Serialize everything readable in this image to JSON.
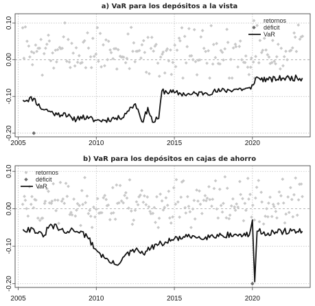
{
  "chart_data": [
    {
      "type": "scatter",
      "title": "a) VaR para los depósitos a la vista",
      "xlabel": "",
      "ylabel": "",
      "xlim": [
        2004.8,
        2023.7
      ],
      "ylim": [
        -0.21,
        0.125
      ],
      "x_ticks": [
        "2005",
        "2010",
        "2015",
        "2020"
      ],
      "y_ticks": [
        "0.10",
        "0.00",
        "-0.10",
        "-0.20"
      ],
      "y_tick_values": [
        0.1,
        0.0,
        -0.1,
        -0.2
      ],
      "x_tick_values": [
        2005,
        2010,
        2015,
        2020
      ],
      "grid": true,
      "legend_position": "top-right",
      "legend": [
        "retornos",
        "déficit",
        "VaR"
      ],
      "series": [
        {
          "name": "retornos",
          "kind": "points",
          "color": "#c8c8c8",
          "seed": 7,
          "x_start": 2005.3,
          "x_end": 2023.2,
          "n": 200,
          "base": 0.02,
          "spread": 0.05,
          "min": -0.05,
          "max": 0.12
        },
        {
          "name": "déficit",
          "kind": "points",
          "color": "#6e6e6e",
          "points": [
            [
              2006.0,
              -0.2
            ]
          ]
        },
        {
          "name": "VaR",
          "kind": "line",
          "color": "#111111",
          "seed": 11,
          "noise": 0.008,
          "x": [
            2005.3,
            2006.0,
            2006.4,
            2007.0,
            2007.5,
            2008.0,
            2008.5,
            2009.0,
            2009.5,
            2010.0,
            2010.5,
            2011.0,
            2011.5,
            2012.0,
            2012.5,
            2013.0,
            2013.3,
            2013.6,
            2014.0,
            2014.2,
            2015.0,
            2016.0,
            2017.0,
            2018.0,
            2019.0,
            2019.9,
            2020.2,
            2021.0,
            2022.0,
            2023.2
          ],
          "y": [
            -0.11,
            -0.105,
            -0.13,
            -0.14,
            -0.15,
            -0.145,
            -0.165,
            -0.155,
            -0.16,
            -0.165,
            -0.165,
            -0.16,
            -0.16,
            -0.14,
            -0.12,
            -0.17,
            -0.13,
            -0.17,
            -0.16,
            -0.085,
            -0.09,
            -0.095,
            -0.09,
            -0.085,
            -0.08,
            -0.08,
            -0.05,
            -0.055,
            -0.05,
            -0.05
          ]
        }
      ]
    },
    {
      "type": "scatter",
      "title": "b) VaR para los depósitos en cajas de ahorro",
      "xlabel": "",
      "ylabel": "",
      "xlim": [
        2004.8,
        2023.7
      ],
      "ylim": [
        -0.21,
        0.115
      ],
      "x_ticks": [
        "2005",
        "2010",
        "2015",
        "2020"
      ],
      "y_ticks": [
        "0.10",
        "0.00",
        "-0.10",
        "-0.20"
      ],
      "y_tick_values": [
        0.1,
        0.0,
        -0.1,
        -0.2
      ],
      "x_tick_values": [
        2005,
        2010,
        2015,
        2020
      ],
      "grid": true,
      "legend_position": "top-left",
      "legend": [
        "retornos",
        "déficit",
        "VaR"
      ],
      "series": [
        {
          "name": "retornos",
          "kind": "points",
          "color": "#c8c8c8",
          "seed": 23,
          "x_start": 2005.3,
          "x_end": 2023.2,
          "n": 210,
          "base": 0.015,
          "spread": 0.045,
          "min": -0.05,
          "max": 0.11
        },
        {
          "name": "déficit",
          "kind": "points",
          "color": "#6e6e6e",
          "points": [
            [
              2020.0,
              -0.2
            ]
          ]
        },
        {
          "name": "VaR",
          "kind": "line",
          "color": "#111111",
          "seed": 31,
          "noise": 0.008,
          "x": [
            2005.3,
            2006.0,
            2006.6,
            2007.0,
            2007.5,
            2008.0,
            2008.5,
            2009.0,
            2009.5,
            2010.0,
            2010.5,
            2011.0,
            2011.3,
            2011.7,
            2012.5,
            2013.0,
            2013.5,
            2014.0,
            2014.5,
            2015.0,
            2016.0,
            2017.0,
            2018.0,
            2019.0,
            2019.8,
            2020.0,
            2020.15,
            2020.3,
            2021.0,
            2022.0,
            2023.2
          ],
          "y": [
            -0.055,
            -0.055,
            -0.075,
            -0.045,
            -0.05,
            -0.065,
            -0.055,
            -0.06,
            -0.08,
            -0.11,
            -0.13,
            -0.145,
            -0.15,
            -0.13,
            -0.11,
            -0.12,
            -0.105,
            -0.095,
            -0.09,
            -0.08,
            -0.075,
            -0.075,
            -0.07,
            -0.07,
            -0.07,
            -0.03,
            -0.195,
            -0.06,
            -0.065,
            -0.06,
            -0.06
          ]
        }
      ]
    }
  ]
}
